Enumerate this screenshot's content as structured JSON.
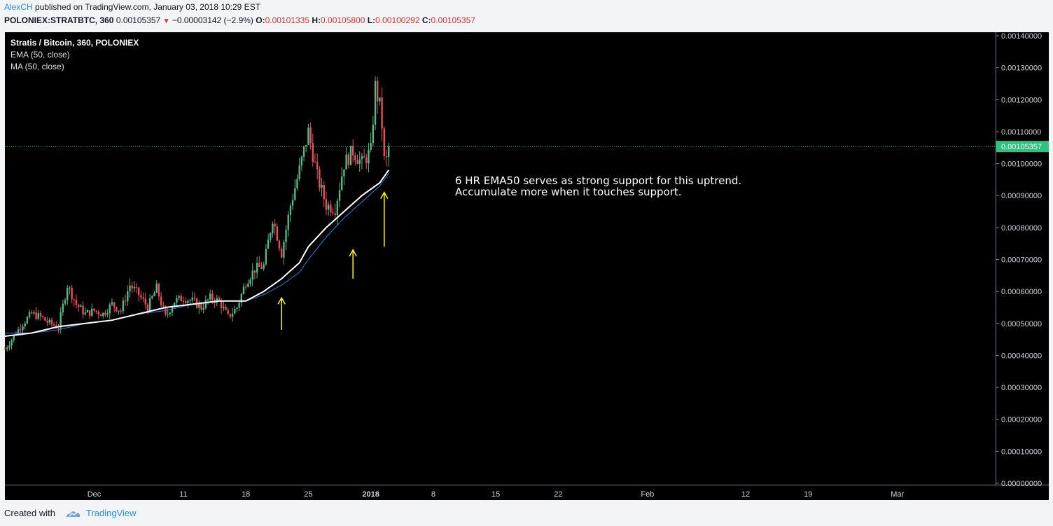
{
  "header": {
    "author": "AlexCH",
    "published_text": "published on TradingView.com, January 03, 2018 10:29 EST"
  },
  "quote": {
    "symbol": "POLONIEX:STRATBTC, 360",
    "last": "0.00105357",
    "change_arrow": "▼",
    "change": "−0.00003142 (−2.9%)",
    "o_label": "O:",
    "o": "0.00101335",
    "h_label": "H:",
    "h": "0.00105800",
    "l_label": "L:",
    "l": "0.00100292",
    "c_label": "C:",
    "c": "0.00105357"
  },
  "legend": {
    "title": "Stratis / Bitcoin, 360, POLONIEX",
    "ema": "EMA (50, close)",
    "ma": "MA (50, close)"
  },
  "annotation": {
    "line1": "6 HR EMA50 serves as strong support for this uptrend.",
    "line2": "Accumulate more when it touches support."
  },
  "footer": {
    "created_with": "Created with",
    "brand": "TradingView"
  },
  "colors": {
    "background": "#000000",
    "up": "#53b987",
    "down": "#eb4d5c",
    "ema": "#ffffff",
    "ma": "#3a7fd1",
    "arrows": "#ffff00",
    "price_label": "#2ec27e"
  },
  "chart_data": {
    "type": "candlestick",
    "title": "Stratis / Bitcoin, 360, POLONIEX",
    "xlabel": "",
    "ylabel": "",
    "ylim": [
      0,
      0.0014
    ],
    "y_ticks": [
      "0.00140000",
      "0.00130000",
      "0.00120000",
      "0.00110000",
      "0.00100000",
      "0.00090000",
      "0.00080000",
      "0.00070000",
      "0.00060000",
      "0.00050000",
      "0.00040000",
      "0.00030000",
      "0.00020000",
      "0.00010000",
      "0.00000000"
    ],
    "x_ticks": [
      "Dec",
      "11",
      "18",
      "25",
      "2018",
      "8",
      "15",
      "22",
      "Feb",
      "12",
      "19",
      "Mar"
    ],
    "x_tick_dates": [
      "2017-12-01",
      "2017-12-11",
      "2017-12-18",
      "2017-12-25",
      "2018-01-01",
      "2018-01-08",
      "2018-01-15",
      "2018-01-22",
      "2018-02-01",
      "2018-02-12",
      "2018-02-19",
      "2018-03-01"
    ],
    "last_price": 0.00105357,
    "last_price_label": "0.00105357",
    "price_path": [
      [
        "2017-11-21T00:00",
        0.00042
      ],
      [
        "2017-11-22T00:00",
        0.00046
      ],
      [
        "2017-11-23T00:00",
        0.0005
      ],
      [
        "2017-11-24T00:00",
        0.00053
      ],
      [
        "2017-11-25T00:00",
        0.00052
      ],
      [
        "2017-11-26T00:00",
        0.0005
      ],
      [
        "2017-11-27T00:00",
        0.00049
      ],
      [
        "2017-11-28T00:00",
        0.00062
      ],
      [
        "2017-11-29T00:00",
        0.00056
      ],
      [
        "2017-11-30T00:00",
        0.00053
      ],
      [
        "2017-12-01T00:00",
        0.00054
      ],
      [
        "2017-12-02T00:00",
        0.00053
      ],
      [
        "2017-12-03T00:00",
        0.00056
      ],
      [
        "2017-12-04T00:00",
        0.00054
      ],
      [
        "2017-12-05T00:00",
        0.00062
      ],
      [
        "2017-12-06T00:00",
        0.00059
      ],
      [
        "2017-12-07T00:00",
        0.00055
      ],
      [
        "2017-12-08T00:00",
        0.00061
      ],
      [
        "2017-12-09T00:00",
        0.00052
      ],
      [
        "2017-12-10T00:00",
        0.00057
      ],
      [
        "2017-12-11T00:00",
        0.00058
      ],
      [
        "2017-12-12T00:00",
        0.00057
      ],
      [
        "2017-12-13T00:00",
        0.00055
      ],
      [
        "2017-12-14T00:00",
        0.00058
      ],
      [
        "2017-12-15T00:00",
        0.00057
      ],
      [
        "2017-12-16T00:00",
        0.00052
      ],
      [
        "2017-12-17T00:00",
        0.00055
      ],
      [
        "2017-12-18T00:00",
        0.00063
      ],
      [
        "2017-12-19T00:00",
        0.00067
      ],
      [
        "2017-12-20T00:00",
        0.00068
      ],
      [
        "2017-12-21T00:00",
        0.00083
      ],
      [
        "2017-12-22T00:00",
        0.00072
      ],
      [
        "2017-12-23T00:00",
        0.00087
      ],
      [
        "2017-12-24T00:00",
        0.00098
      ],
      [
        "2017-12-25T00:00",
        0.0011
      ],
      [
        "2017-12-26T00:00",
        0.00096
      ],
      [
        "2017-12-27T00:00",
        0.00087
      ],
      [
        "2017-12-28T00:00",
        0.00086
      ],
      [
        "2017-12-29T00:00",
        0.001
      ],
      [
        "2017-12-30T00:00",
        0.00104
      ],
      [
        "2017-12-31T00:00",
        0.001
      ],
      [
        "2018-01-01T00:00",
        0.00104
      ],
      [
        "2018-01-01T12:00",
        0.00124
      ],
      [
        "2018-01-02T00:00",
        0.00118
      ],
      [
        "2018-01-02T06:00",
        0.00112
      ],
      [
        "2018-01-02T12:00",
        0.00101
      ],
      [
        "2018-01-02T18:00",
        0.00101
      ],
      [
        "2018-01-03T00:00",
        0.00105357
      ]
    ],
    "series": [
      {
        "name": "EMA (50, close)",
        "points": [
          [
            "2017-11-21T00:00",
            0.00046
          ],
          [
            "2017-11-24T00:00",
            0.00047
          ],
          [
            "2017-11-27T00:00",
            0.00049
          ],
          [
            "2017-11-30T00:00",
            0.0005
          ],
          [
            "2017-12-03T00:00",
            0.00051
          ],
          [
            "2017-12-06T00:00",
            0.00053
          ],
          [
            "2017-12-09T00:00",
            0.00055
          ],
          [
            "2017-12-12T00:00",
            0.00056
          ],
          [
            "2017-12-15T00:00",
            0.00057
          ],
          [
            "2017-12-18T00:00",
            0.00057
          ],
          [
            "2017-12-20T00:00",
            0.0006
          ],
          [
            "2017-12-22T00:00",
            0.00064
          ],
          [
            "2017-12-24T00:00",
            0.00069
          ],
          [
            "2017-12-25T00:00",
            0.00074
          ],
          [
            "2017-12-27T00:00",
            0.0008
          ],
          [
            "2017-12-29T00:00",
            0.00085
          ],
          [
            "2017-12-31T00:00",
            0.0009
          ],
          [
            "2018-01-02T00:00",
            0.00094
          ],
          [
            "2018-01-03T00:00",
            0.00098
          ]
        ]
      },
      {
        "name": "MA (50, close)",
        "points": [
          [
            "2017-11-21T00:00",
            0.00047
          ],
          [
            "2017-11-24T00:00",
            0.00047
          ],
          [
            "2017-11-27T00:00",
            0.00048
          ],
          [
            "2017-11-30T00:00",
            0.0005
          ],
          [
            "2017-12-03T00:00",
            0.00051
          ],
          [
            "2017-12-06T00:00",
            0.00053
          ],
          [
            "2017-12-09T00:00",
            0.00054
          ],
          [
            "2017-12-12T00:00",
            0.00056
          ],
          [
            "2017-12-15T00:00",
            0.00057
          ],
          [
            "2017-12-18T00:00",
            0.00057
          ],
          [
            "2017-12-20T00:00",
            0.00059
          ],
          [
            "2017-12-22T00:00",
            0.00062
          ],
          [
            "2017-12-24T00:00",
            0.00066
          ],
          [
            "2017-12-25T00:00",
            0.0007
          ],
          [
            "2017-12-27T00:00",
            0.00077
          ],
          [
            "2017-12-29T00:00",
            0.00083
          ],
          [
            "2017-12-31T00:00",
            0.00088
          ],
          [
            "2018-01-02T00:00",
            0.00093
          ],
          [
            "2018-01-03T00:00",
            0.00097
          ]
        ]
      }
    ],
    "annotation_arrows": [
      {
        "date": "2017-12-22T00:00",
        "from": 0.00048,
        "to": 0.00058
      },
      {
        "date": "2017-12-30T00:00",
        "from": 0.00064,
        "to": 0.00073
      },
      {
        "date": "2018-01-02T12:00",
        "from": 0.00074,
        "to": 0.00091
      }
    ]
  }
}
